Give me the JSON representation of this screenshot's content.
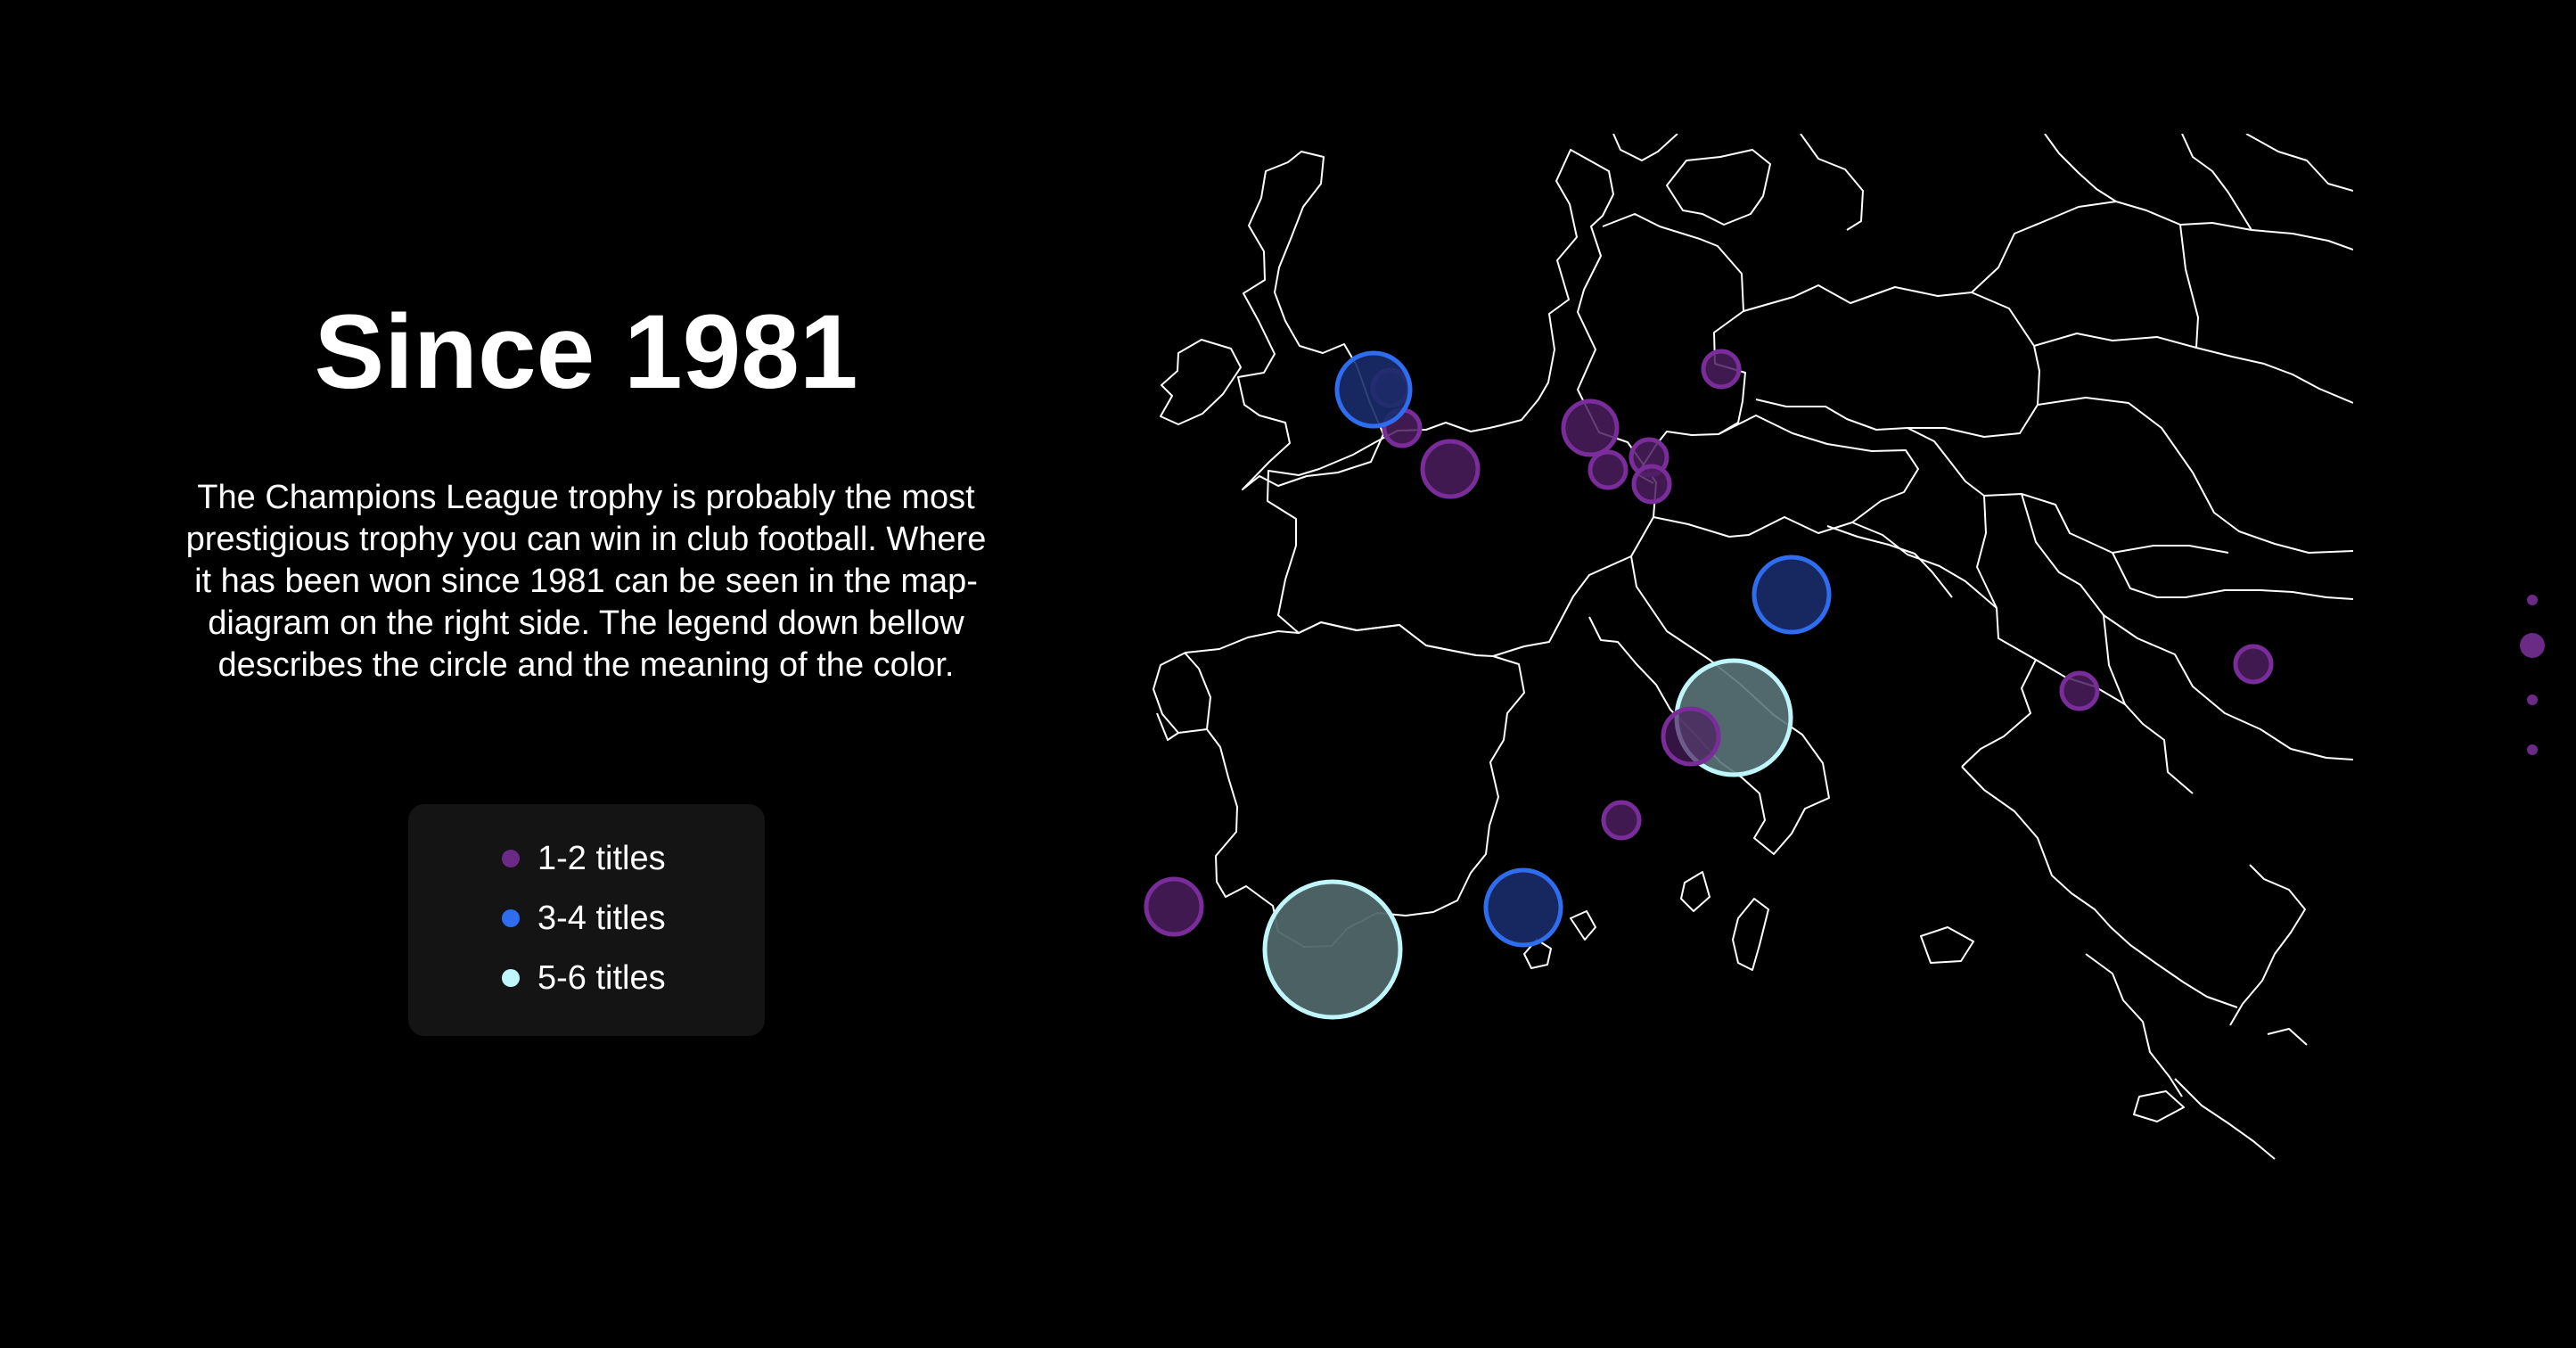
{
  "title": "Since 1981",
  "description": "The Champions League trophy is probably the most prestigious trophy you can win in club football. Where it has been won since 1981 can be seen in the map-diagram on the right side. The legend down bellow describes the circle and the meaning of the color.",
  "legend": [
    {
      "label": "1-2 titles",
      "color": "#6b2a87"
    },
    {
      "label": "3-4 titles",
      "color": "#2f6df0"
    },
    {
      "label": "5-6 titles",
      "color": "#bff6fb"
    }
  ],
  "colors": {
    "background": "#000000",
    "panel": "#141414",
    "map_stroke": "#ffffff",
    "pager": "#6a2a86"
  },
  "pager": {
    "count": 4,
    "active_index": 1
  }
}
